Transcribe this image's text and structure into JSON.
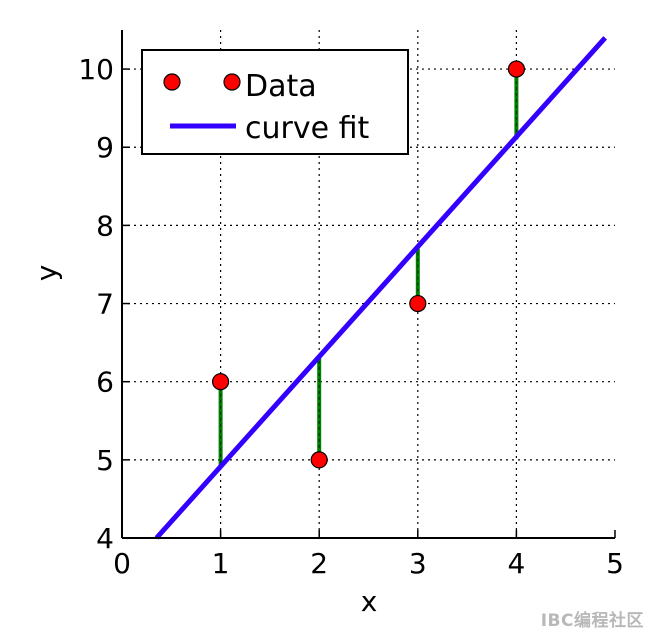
{
  "chart_data": {
    "type": "scatter",
    "title": "",
    "xlabel": "x",
    "ylabel": "y",
    "xlim": [
      0,
      5
    ],
    "ylim": [
      4,
      10.5
    ],
    "xticks": [
      0,
      1,
      2,
      3,
      4,
      5
    ],
    "yticks": [
      4,
      5,
      6,
      7,
      8,
      9,
      10
    ],
    "grid": true,
    "legend_position": "top-left",
    "series": [
      {
        "name": "Data",
        "kind": "points",
        "color": "#ff0000",
        "x": [
          1,
          2,
          3,
          4
        ],
        "y": [
          6,
          5,
          7,
          10
        ]
      },
      {
        "name": "curve fit",
        "kind": "line",
        "color": "#3300ff",
        "x": [
          0.35,
          4.9
        ],
        "y": [
          4.0,
          10.4
        ]
      }
    ],
    "residuals": {
      "color": "#008000",
      "x": [
        1,
        2,
        3,
        4
      ],
      "y_data": [
        6,
        5,
        7,
        10
      ],
      "y_fit": [
        4.9,
        6.3,
        7.7,
        9.1
      ]
    }
  },
  "watermark": "IBC编程社区"
}
